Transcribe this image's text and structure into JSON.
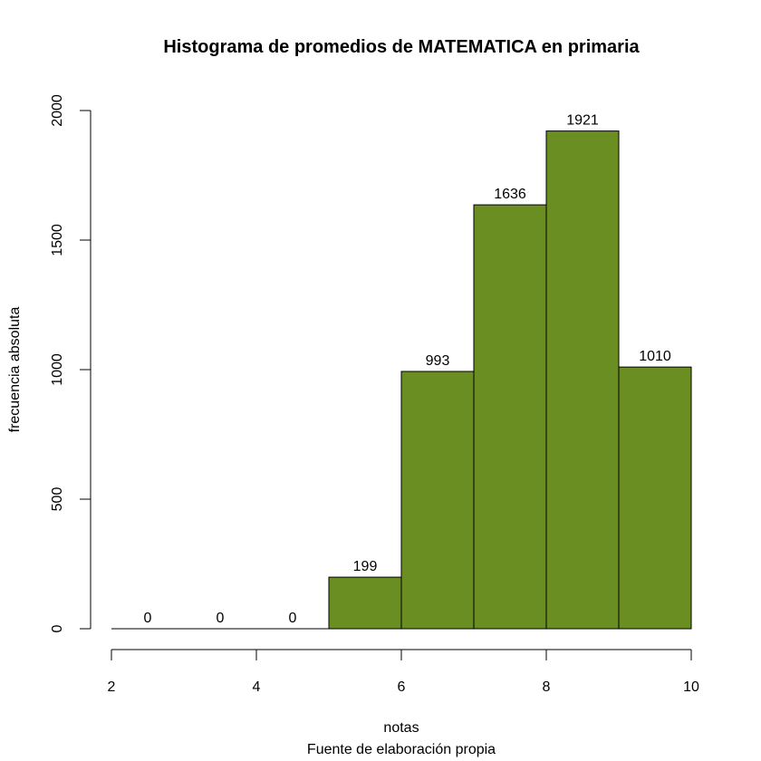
{
  "chart_data": {
    "type": "bar",
    "title": "Histograma de promedios de MATEMATICA en primaria",
    "xlabel": "notas",
    "caption": "Fuente de elaboración propia",
    "ylabel": "frecuencia absoluta",
    "bins": [
      {
        "from": 2,
        "to": 3,
        "count": 0,
        "label": "0"
      },
      {
        "from": 3,
        "to": 4,
        "count": 0,
        "label": "0"
      },
      {
        "from": 4,
        "to": 5,
        "count": 0,
        "label": "0"
      },
      {
        "from": 5,
        "to": 6,
        "count": 199,
        "label": "199"
      },
      {
        "from": 6,
        "to": 7,
        "count": 993,
        "label": "993"
      },
      {
        "from": 7,
        "to": 8,
        "count": 1636,
        "label": "1636"
      },
      {
        "from": 8,
        "to": 9,
        "count": 1921,
        "label": "1921"
      },
      {
        "from": 9,
        "to": 10,
        "count": 1010,
        "label": "1010"
      }
    ],
    "xlim": [
      2,
      10
    ],
    "ylim": [
      0,
      2000
    ],
    "x_ticks": [
      2,
      4,
      6,
      8,
      10
    ],
    "y_ticks": [
      0,
      500,
      1000,
      1500,
      2000
    ],
    "bar_color": "#6b8e23",
    "grid": false,
    "legend": "none"
  }
}
